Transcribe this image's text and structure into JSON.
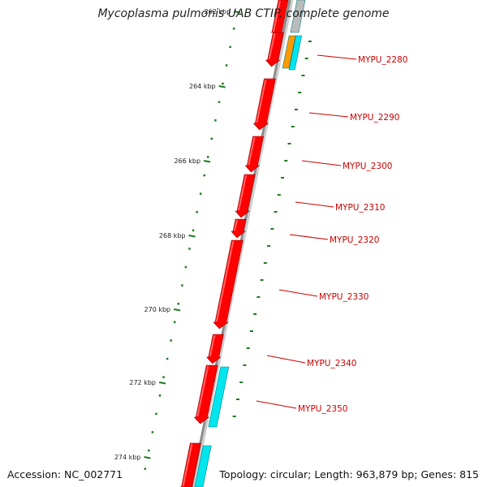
{
  "title": "Mycoplasma pulmonis UAB CTIP, complete genome",
  "footer": {
    "accession_label": "Accession:",
    "accession": "NC_002771",
    "topology_label": "Topology:",
    "topology": "circular",
    "length_label": "Length:",
    "length": "963,879 bp",
    "genes_label": "Genes:",
    "genes": "815"
  },
  "colors": {
    "gene_forward": "#ff0000",
    "gene_other": "#00e5ee",
    "gene_orange": "#ff9900",
    "gene_gray": "#bbbbbb",
    "backbone": "#8c8c8c",
    "tick": "#1f7a1f",
    "label": "#cc0000"
  },
  "chart_data": {
    "type": "genome-map",
    "ruler": [
      "262 kbp",
      "264 kbp",
      "266 kbp",
      "268 kbp",
      "270 kbp",
      "272 kbp",
      "274 kbp"
    ],
    "gene_labels": [
      "MYPU_2280",
      "MYPU_2290",
      "MYPU_2300",
      "MYPU_2310",
      "MYPU_2320",
      "MYPU_2330",
      "MYPU_2340",
      "MYPU_2350"
    ]
  }
}
